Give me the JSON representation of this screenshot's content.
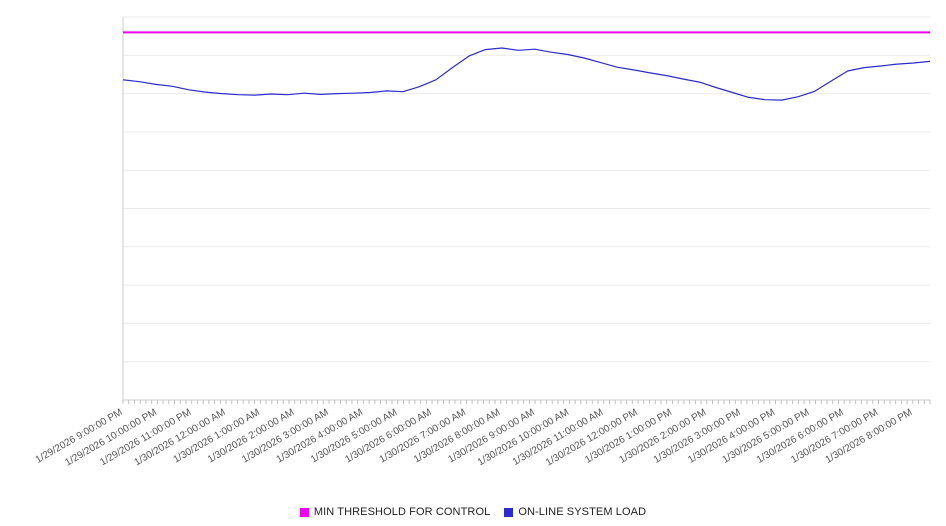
{
  "chart_data": {
    "type": "line",
    "title": "",
    "xlabel": "",
    "ylabel": "",
    "ylim": [
      0,
      100
    ],
    "grid": true,
    "grid_step": 10,
    "y_axis_labels_visible": false,
    "legend_position": "bottom",
    "categories": [
      "1/29/2026 9:00:00 PM",
      "1/29/2026 10:00:00 PM",
      "1/29/2026 11:00:00 PM",
      "1/30/2026 12:00:00 AM",
      "1/30/2026 1:00:00 AM",
      "1/30/2026 2:00:00 AM",
      "1/30/2026 3:00:00 AM",
      "1/30/2026 4:00:00 AM",
      "1/30/2026 5:00:00 AM",
      "1/30/2026 6:00:00 AM",
      "1/30/2026 7:00:00 AM",
      "1/30/2026 8:00:00 AM",
      "1/30/2026 9:00:00 AM",
      "1/30/2026 10:00:00 AM",
      "1/30/2026 11:00:00 AM",
      "1/30/2026 12:00:00 PM",
      "1/30/2026 1:00:00 PM",
      "1/30/2026 2:00:00 PM",
      "1/30/2026 3:00:00 PM",
      "1/30/2026 4:00:00 PM",
      "1/30/2026 5:00:00 PM",
      "1/30/2026 6:00:00 PM",
      "1/30/2026 7:00:00 PM",
      "1/30/2026 8:00:00 PM"
    ],
    "series": [
      {
        "name": "MIN THRESHOLD FOR CONTROL",
        "type": "threshold",
        "color": "#ee00ee",
        "value": 96
      },
      {
        "name": "ON-LINE SYSTEM LOAD",
        "type": "line",
        "color": "#2b2bd0",
        "values": [
          83.6,
          83.1,
          82.4,
          81.9,
          81.0,
          80.4,
          80.0,
          79.7,
          79.6,
          79.9,
          79.7,
          80.1,
          79.8,
          80.0,
          80.1,
          80.3,
          80.7,
          80.5,
          81.8,
          83.6,
          86.8,
          89.8,
          91.5,
          91.9,
          91.3,
          91.6,
          90.8,
          90.2,
          89.3,
          88.1,
          86.9,
          86.2,
          85.4,
          84.7,
          83.8,
          83.0,
          81.6,
          80.3,
          79.0,
          78.4,
          78.3,
          79.2,
          80.6,
          83.3,
          85.9,
          86.8,
          87.2,
          87.7,
          88.0,
          88.4
        ]
      }
    ],
    "colors": {
      "gridline": "#ececec",
      "axis": "#cccccc",
      "tick": "#c0c0c0",
      "x_label_text": "#555555"
    }
  }
}
